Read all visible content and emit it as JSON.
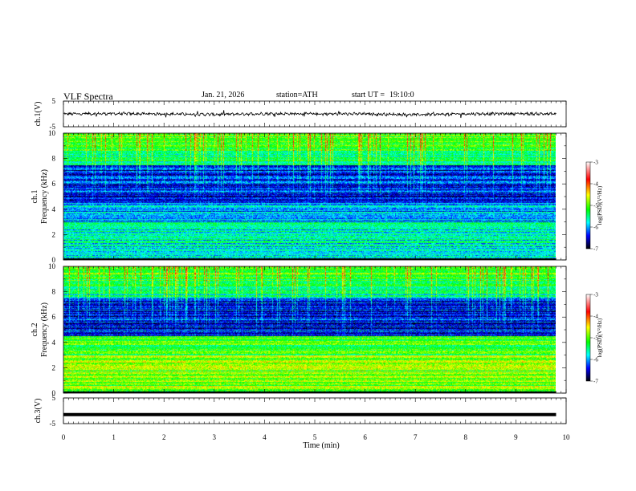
{
  "header": {
    "title": "VLF Spectra",
    "date": "Jan. 21, 2026",
    "station": "station=ATH",
    "start_label": "start UT =",
    "start_time": "19:10:0"
  },
  "colorbar": {
    "label": "log(PSD)(V²/Hz)",
    "ticks": [
      "-3",
      "-4",
      "-5",
      "-6",
      "-7"
    ],
    "colors": [
      "#ffffff",
      "#ff0000",
      "#ffff00",
      "#00ff00",
      "#00ffff",
      "#0000ff",
      "#000000"
    ]
  },
  "chart_data": [
    {
      "type": "line",
      "name": "ch.1 waveform",
      "ylabel": "ch.1(V)",
      "ylim": [
        -5,
        5
      ],
      "yticks": [
        "5",
        "-5"
      ],
      "xlim": [
        0,
        10
      ],
      "x": [
        0,
        1,
        2,
        3,
        4,
        5,
        6,
        7,
        8,
        9,
        9.8
      ],
      "values": [
        0,
        0.1,
        0,
        -0.2,
        0.1,
        0,
        0,
        -0.3,
        0,
        0.1,
        0
      ],
      "color": "#000000"
    },
    {
      "type": "heatmap",
      "name": "ch.1 spectrogram",
      "ylabel": "ch.1 Frequency (kHz)",
      "ylim": [
        0,
        10
      ],
      "yticks": [
        "0",
        "2",
        "4",
        "6",
        "8",
        "10"
      ],
      "xlim": [
        0,
        9.8
      ],
      "z_range": [
        -7,
        -3
      ]
    },
    {
      "type": "heatmap",
      "name": "ch.2 spectrogram",
      "ylabel": "ch.2 Frequency (kHz)",
      "ylim": [
        0,
        10
      ],
      "yticks": [
        "0",
        "2",
        "4",
        "6",
        "8",
        "10"
      ],
      "xlim": [
        0,
        9.8
      ],
      "z_range": [
        -7,
        -3
      ]
    },
    {
      "type": "line",
      "name": "ch.3 waveform",
      "ylabel": "ch.3(V)",
      "ylim": [
        -5,
        5
      ],
      "yticks": [
        "5",
        "-5"
      ],
      "xlim": [
        0,
        10
      ],
      "x": [
        0,
        9.8
      ],
      "values": [
        -1.5,
        -1.5
      ],
      "color": "#000000"
    }
  ],
  "xaxis": {
    "label": "Time (min)",
    "ticks": [
      "0",
      "1",
      "2",
      "3",
      "4",
      "5",
      "6",
      "7",
      "8",
      "9",
      "10"
    ],
    "range": [
      0,
      10
    ]
  }
}
